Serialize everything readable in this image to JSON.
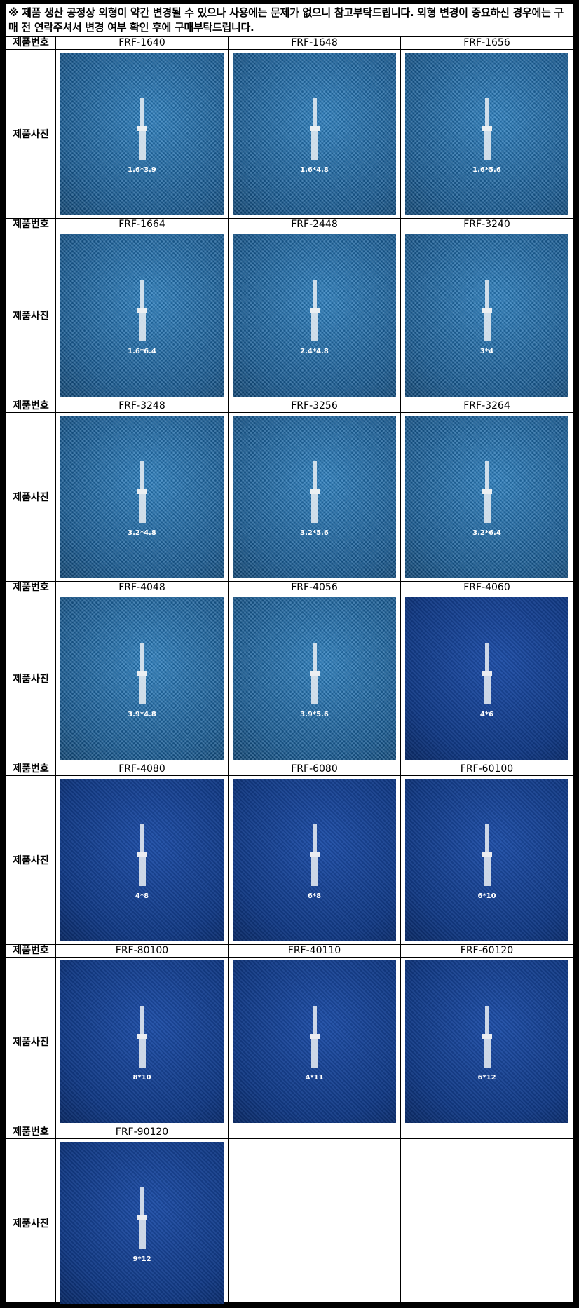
{
  "notice": "※ 제품 생산 공정상 외형이 약간 변경될 수 있으나 사용에는 문제가 없으니 참고부탁드립니다. 외형 변경이 중요하신 경우에는 구매 전 연락주셔서 변경 여부 확인 후에 구매부탁드립니다.",
  "labels": {
    "number": "제품번호",
    "photo": "제품사진"
  },
  "products": [
    {
      "code": "FRF-1640",
      "caption": "1.6*3.9",
      "bg": "carbon"
    },
    {
      "code": "FRF-1648",
      "caption": "1.6*4.8",
      "bg": "carbon"
    },
    {
      "code": "FRF-1656",
      "caption": "1.6*5.6",
      "bg": "carbon"
    },
    {
      "code": "FRF-1664",
      "caption": "1.6*6.4",
      "bg": "carbon"
    },
    {
      "code": "FRF-2448",
      "caption": "2.4*4.8",
      "bg": "carbon"
    },
    {
      "code": "FRF-3240",
      "caption": "3*4",
      "bg": "carbon"
    },
    {
      "code": "FRF-3248",
      "caption": "3.2*4.8",
      "bg": "carbon"
    },
    {
      "code": "FRF-3256",
      "caption": "3.2*5.6",
      "bg": "carbon"
    },
    {
      "code": "FRF-3264",
      "caption": "3.2*6.4",
      "bg": "carbon"
    },
    {
      "code": "FRF-4048",
      "caption": "3.9*4.8",
      "bg": "carbon"
    },
    {
      "code": "FRF-4056",
      "caption": "3.9*5.6",
      "bg": "carbon"
    },
    {
      "code": "FRF-4060",
      "caption": "4*6",
      "bg": "dark"
    },
    {
      "code": "FRF-4080",
      "caption": "4*8",
      "bg": "dark"
    },
    {
      "code": "FRF-6080",
      "caption": "6*8",
      "bg": "dark"
    },
    {
      "code": "FRF-60100",
      "caption": "6*10",
      "bg": "dark"
    },
    {
      "code": "FRF-80100",
      "caption": "8*10",
      "bg": "dark"
    },
    {
      "code": "FRF-40110",
      "caption": "4*11",
      "bg": "dark"
    },
    {
      "code": "FRF-60120",
      "caption": "6*12",
      "bg": "dark"
    },
    {
      "code": "FRF-90120",
      "caption": "9*12",
      "bg": "dark"
    }
  ]
}
